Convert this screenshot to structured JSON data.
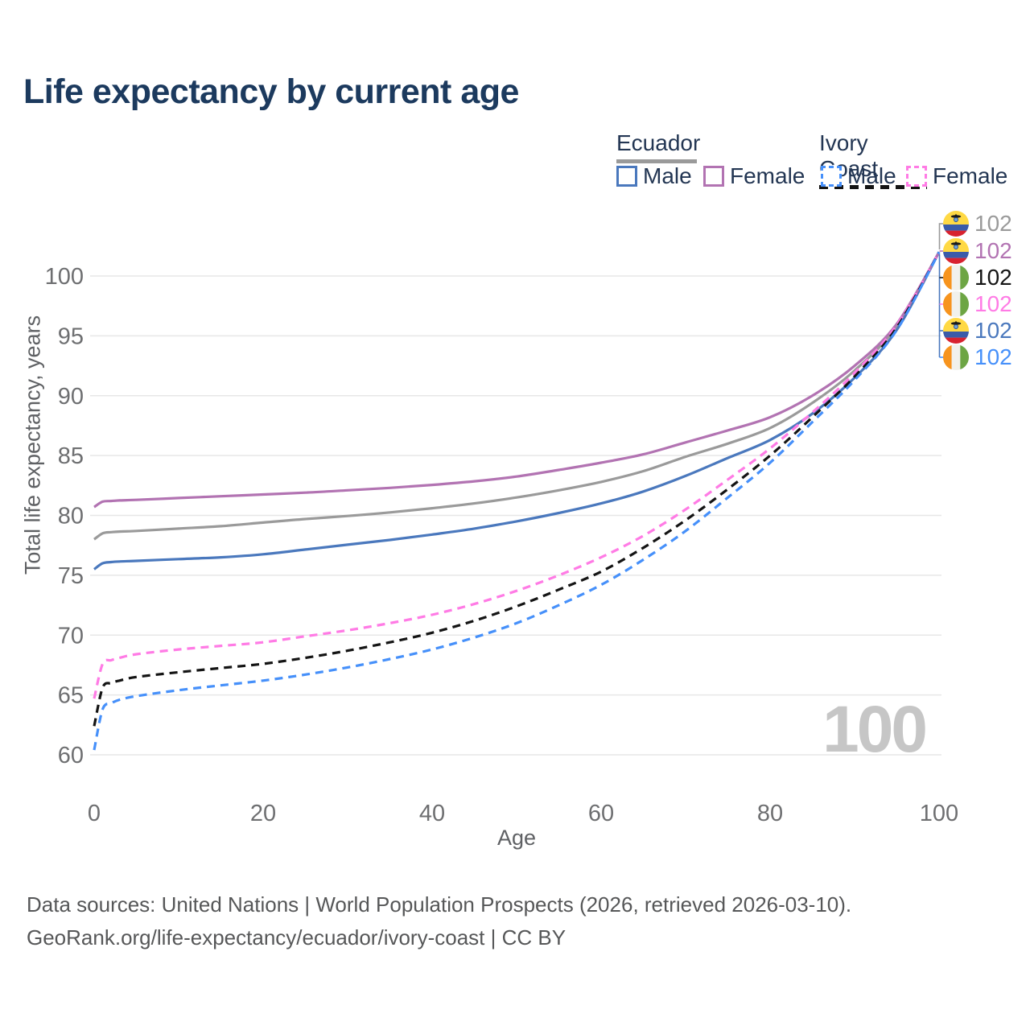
{
  "title": "Life expectancy by current age",
  "watermark_age": "100",
  "legend": {
    "groups": [
      {
        "country": "Ecuador",
        "line_style": "solid",
        "underline_color": "#9a9a9a",
        "items": [
          {
            "label": "Male",
            "color": "#4a78bd",
            "dashed": false
          },
          {
            "label": "Female",
            "color": "#b273b2",
            "dashed": false
          }
        ]
      },
      {
        "country": "Ivory Coast",
        "line_style": "dashed",
        "underline_color": "#141414",
        "items": [
          {
            "label": "Male",
            "color": "#4690fa",
            "dashed": true
          },
          {
            "label": "Female",
            "color": "#ff7be5",
            "dashed": true
          }
        ]
      }
    ]
  },
  "footer": {
    "line1": "Data sources: United Nations | World Population Prospects (2026, retrieved 2026-03-10).",
    "line2": "GeoRank.org/life-expectancy/ecuador/ivory-coast | CC BY"
  },
  "chart_data": {
    "type": "line",
    "title": "Life expectancy by current age",
    "xlabel": "Age",
    "ylabel": "Total life expectancy, years",
    "xlim": [
      0,
      100
    ],
    "ylim": [
      60,
      102
    ],
    "xticks": [
      0,
      20,
      40,
      60,
      80,
      100
    ],
    "yticks": [
      60,
      65,
      70,
      75,
      80,
      85,
      90,
      95,
      100
    ],
    "grid": "horizontal",
    "x": [
      0,
      1,
      2,
      3,
      5,
      10,
      15,
      20,
      25,
      30,
      35,
      40,
      45,
      50,
      55,
      60,
      65,
      70,
      75,
      80,
      85,
      90,
      95,
      100
    ],
    "series": [
      {
        "name": "Ecuador (both sexes)",
        "country": "Ecuador",
        "flag": "ecuador",
        "color": "#9a9a9a",
        "dashed": false,
        "end_label": "102",
        "values": [
          78.0,
          78.5,
          78.6,
          78.65,
          78.7,
          78.9,
          79.1,
          79.4,
          79.7,
          79.95,
          80.25,
          80.6,
          81.0,
          81.5,
          82.1,
          82.8,
          83.7,
          84.9,
          86.0,
          87.3,
          89.4,
          92.1,
          95.8,
          102
        ]
      },
      {
        "name": "Ecuador Female",
        "country": "Ecuador",
        "flag": "ecuador",
        "color": "#b273b2",
        "dashed": false,
        "end_label": "102",
        "values": [
          80.7,
          81.15,
          81.2,
          81.25,
          81.3,
          81.45,
          81.6,
          81.75,
          81.9,
          82.1,
          82.3,
          82.55,
          82.85,
          83.25,
          83.8,
          84.4,
          85.1,
          86.1,
          87.1,
          88.2,
          90.0,
          92.5,
          96.0,
          102
        ]
      },
      {
        "name": "Ecuador Male",
        "country": "Ecuador",
        "flag": "ecuador",
        "color": "#4a78bd",
        "dashed": false,
        "end_label": "102",
        "values": [
          75.5,
          76.0,
          76.1,
          76.15,
          76.2,
          76.35,
          76.5,
          76.75,
          77.15,
          77.55,
          77.95,
          78.4,
          78.9,
          79.5,
          80.2,
          81.0,
          82.0,
          83.3,
          84.8,
          86.3,
          88.5,
          91.5,
          95.5,
          102
        ]
      },
      {
        "name": "Ivory Coast Female",
        "country": "Ivory Coast",
        "flag": "ivory-coast",
        "color": "#ff7be5",
        "dashed": true,
        "end_label": "102",
        "values": [
          64.7,
          67.6,
          67.9,
          68.1,
          68.4,
          68.8,
          69.1,
          69.4,
          69.9,
          70.4,
          71.0,
          71.7,
          72.6,
          73.7,
          75.0,
          76.5,
          78.3,
          80.5,
          83.0,
          85.6,
          88.6,
          91.9,
          95.9,
          102
        ]
      },
      {
        "name": "Ivory Coast (both sexes)",
        "country": "Ivory Coast",
        "flag": "ivory-coast",
        "color": "#141414",
        "dashed": true,
        "end_label": "102",
        "values": [
          62.4,
          65.6,
          66.0,
          66.2,
          66.5,
          66.9,
          67.25,
          67.6,
          68.1,
          68.7,
          69.4,
          70.2,
          71.2,
          72.4,
          73.8,
          75.3,
          77.3,
          79.6,
          82.2,
          85.0,
          88.2,
          91.6,
          95.7,
          102
        ]
      },
      {
        "name": "Ivory Coast Male",
        "country": "Ivory Coast",
        "flag": "ivory-coast",
        "color": "#4690fa",
        "dashed": true,
        "end_label": "102",
        "values": [
          60.4,
          63.8,
          64.3,
          64.6,
          64.9,
          65.4,
          65.8,
          66.2,
          66.7,
          67.3,
          68.0,
          68.8,
          69.8,
          71.0,
          72.5,
          74.2,
          76.3,
          78.7,
          81.5,
          84.4,
          87.8,
          91.3,
          95.5,
          102
        ]
      }
    ],
    "end_labels_top_to_bottom": [
      {
        "value": "102",
        "color": "#9a9a9a",
        "flag": "ecuador",
        "series": "Ecuador (both sexes)"
      },
      {
        "value": "102",
        "color": "#b273b2",
        "flag": "ecuador",
        "series": "Ecuador Female"
      },
      {
        "value": "102",
        "color": "#141414",
        "flag": "ivory-coast",
        "series": "Ivory Coast (both sexes)"
      },
      {
        "value": "102",
        "color": "#ff7be5",
        "flag": "ivory-coast",
        "series": "Ivory Coast Female"
      },
      {
        "value": "102",
        "color": "#4a78bd",
        "flag": "ecuador",
        "series": "Ecuador Male"
      },
      {
        "value": "102",
        "color": "#4690fa",
        "flag": "ivory-coast",
        "series": "Ivory Coast Male"
      }
    ]
  }
}
